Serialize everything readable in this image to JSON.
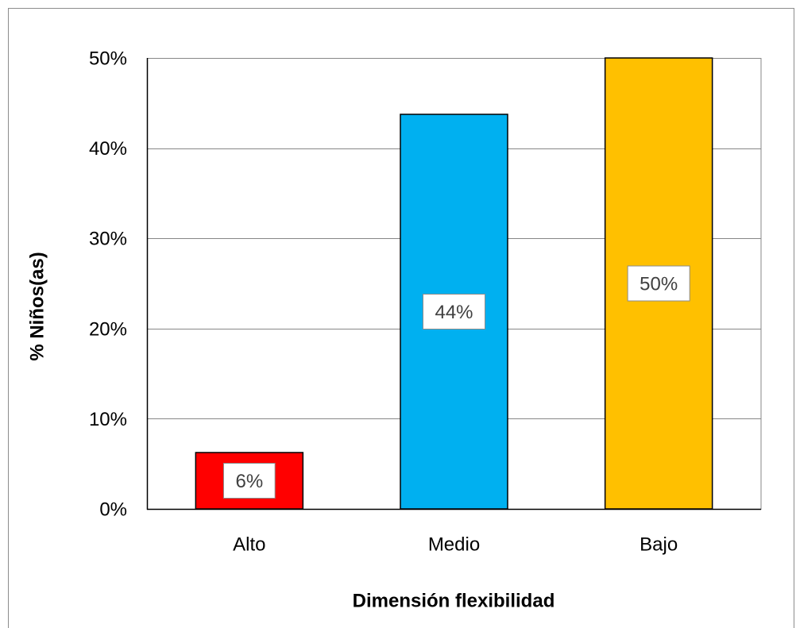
{
  "chart_data": {
    "type": "bar",
    "categories": [
      "Alto",
      "Medio",
      "Bajo"
    ],
    "values": [
      6.25,
      43.75,
      50
    ],
    "data_labels": [
      "6%",
      "44%",
      "50%"
    ],
    "colors": [
      "#FF0000",
      "#00B0F0",
      "#FFC000"
    ],
    "xlabel": "Dimensión flexibilidad",
    "ylabel": "% Niños(as)",
    "ylim": [
      0,
      50
    ],
    "yticks": [
      0,
      10,
      20,
      30,
      40,
      50
    ],
    "ytick_labels": [
      "0%",
      "10%",
      "20%",
      "30%",
      "40%",
      "50%"
    ],
    "grid": true,
    "legend": "none"
  }
}
